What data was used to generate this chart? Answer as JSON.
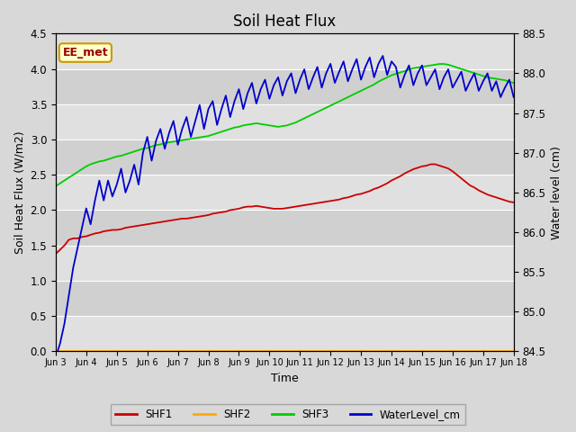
{
  "title": "Soil Heat Flux",
  "ylabel_left": "Soil Heat Flux (W/m2)",
  "ylabel_right": "Water level (cm)",
  "xlabel": "Time",
  "ylim_left": [
    0.0,
    4.5
  ],
  "ylim_right": [
    84.5,
    88.5
  ],
  "fig_bg_color": "#d8d8d8",
  "plot_bg_color": "#e8e8e8",
  "annotation_text": "EE_met",
  "annotation_bg": "#ffffcc",
  "annotation_border": "#cc9900",
  "annotation_text_color": "#990000",
  "x_tick_labels": [
    "Jun 3",
    "Jun 4",
    "Jun 5",
    "Jun 6",
    "Jun 7",
    "Jun 8",
    "Jun 9",
    "Jun 10",
    "Jun 11",
    "Jun 12",
    "Jun 13",
    "Jun 14",
    "Jun 15",
    "Jun 16",
    "Jun 17",
    "Jun 18"
  ],
  "shf1_color": "#cc0000",
  "shf2_color": "#ffaa00",
  "shf3_color": "#00cc00",
  "water_color": "#0000cc",
  "legend_labels": [
    "SHF1",
    "SHF2",
    "SHF3",
    "WaterLevel_cm"
  ],
  "band_colors": [
    "#e0e0e0",
    "#d0d0d0"
  ],
  "shf1": [
    1.38,
    1.44,
    1.5,
    1.58,
    1.6,
    1.6,
    1.62,
    1.63,
    1.65,
    1.67,
    1.68,
    1.7,
    1.71,
    1.72,
    1.72,
    1.73,
    1.75,
    1.76,
    1.77,
    1.78,
    1.79,
    1.8,
    1.81,
    1.82,
    1.83,
    1.84,
    1.85,
    1.86,
    1.87,
    1.88,
    1.88,
    1.89,
    1.9,
    1.91,
    1.92,
    1.93,
    1.95,
    1.96,
    1.97,
    1.98,
    2.0,
    2.01,
    2.02,
    2.04,
    2.05,
    2.05,
    2.06,
    2.05,
    2.04,
    2.03,
    2.02,
    2.02,
    2.02,
    2.03,
    2.04,
    2.05,
    2.06,
    2.07,
    2.08,
    2.09,
    2.1,
    2.11,
    2.12,
    2.13,
    2.14,
    2.15,
    2.17,
    2.18,
    2.2,
    2.22,
    2.23,
    2.25,
    2.27,
    2.3,
    2.32,
    2.35,
    2.38,
    2.42,
    2.45,
    2.48,
    2.52,
    2.55,
    2.58,
    2.6,
    2.62,
    2.63,
    2.65,
    2.65,
    2.63,
    2.61,
    2.59,
    2.55,
    2.5,
    2.45,
    2.4,
    2.35,
    2.32,
    2.28,
    2.25,
    2.22,
    2.2,
    2.18,
    2.16,
    2.14,
    2.12,
    2.11
  ],
  "shf2": [
    0.0,
    0.0,
    0.0,
    0.0,
    0.0,
    0.0,
    0.0,
    0.0,
    0.0,
    0.0,
    0.0,
    0.0,
    0.0,
    0.0,
    0.0,
    0.0,
    0.0,
    0.0,
    0.0,
    0.0,
    0.0,
    0.0,
    0.0,
    0.0,
    0.0,
    0.0,
    0.0,
    0.0,
    0.0,
    0.0,
    0.0,
    0.0,
    0.0,
    0.0,
    0.0,
    0.0,
    0.0,
    0.0,
    0.0,
    0.0,
    0.0,
    0.0,
    0.0,
    0.0,
    0.0,
    0.0,
    0.0,
    0.0,
    0.0,
    0.0,
    0.0,
    0.0,
    0.0,
    0.0,
    0.0,
    0.0,
    0.0,
    0.0,
    0.0,
    0.0,
    0.0,
    0.0,
    0.0,
    0.0,
    0.0,
    0.0,
    0.0,
    0.0,
    0.0,
    0.0,
    0.0,
    0.0,
    0.0,
    0.0,
    0.0,
    0.0,
    0.0,
    0.0,
    0.0,
    0.0,
    0.0,
    0.0,
    0.0,
    0.0,
    0.0,
    0.0,
    0.0,
    0.0,
    0.0,
    0.0,
    0.0,
    0.0,
    0.0,
    0.0,
    0.0,
    0.0,
    0.0,
    0.0,
    0.0,
    0.0,
    0.0,
    0.0,
    0.0,
    0.0,
    0.0,
    0.0
  ],
  "shf3": [
    2.34,
    2.38,
    2.42,
    2.46,
    2.5,
    2.54,
    2.58,
    2.62,
    2.65,
    2.67,
    2.69,
    2.7,
    2.72,
    2.74,
    2.76,
    2.77,
    2.79,
    2.81,
    2.83,
    2.85,
    2.87,
    2.88,
    2.9,
    2.92,
    2.93,
    2.95,
    2.96,
    2.97,
    2.98,
    2.99,
    3.0,
    3.01,
    3.02,
    3.03,
    3.04,
    3.05,
    3.07,
    3.09,
    3.11,
    3.13,
    3.15,
    3.17,
    3.18,
    3.2,
    3.21,
    3.22,
    3.23,
    3.22,
    3.21,
    3.2,
    3.19,
    3.18,
    3.19,
    3.2,
    3.22,
    3.24,
    3.27,
    3.3,
    3.33,
    3.36,
    3.39,
    3.42,
    3.45,
    3.48,
    3.51,
    3.54,
    3.57,
    3.6,
    3.63,
    3.66,
    3.69,
    3.72,
    3.75,
    3.78,
    3.82,
    3.85,
    3.88,
    3.91,
    3.93,
    3.95,
    3.97,
    3.99,
    4.01,
    4.02,
    4.03,
    4.04,
    4.05,
    4.06,
    4.07,
    4.07,
    4.06,
    4.04,
    4.02,
    4.0,
    3.98,
    3.96,
    3.94,
    3.92,
    3.9,
    3.88,
    3.87,
    3.86,
    3.85,
    3.84,
    3.82,
    3.8
  ],
  "water": [
    84.42,
    84.6,
    84.85,
    85.2,
    85.55,
    85.8,
    86.05,
    86.3,
    86.1,
    86.4,
    86.65,
    86.4,
    86.65,
    86.45,
    86.6,
    86.8,
    86.5,
    86.65,
    86.85,
    86.6,
    87.0,
    87.2,
    86.9,
    87.15,
    87.3,
    87.05,
    87.25,
    87.4,
    87.1,
    87.3,
    87.45,
    87.2,
    87.4,
    87.6,
    87.3,
    87.55,
    87.65,
    87.35,
    87.55,
    87.72,
    87.45,
    87.65,
    87.8,
    87.55,
    87.75,
    87.88,
    87.62,
    87.8,
    87.92,
    87.68,
    87.85,
    87.95,
    87.72,
    87.9,
    88.0,
    87.75,
    87.92,
    88.05,
    87.8,
    87.95,
    88.08,
    87.82,
    88.0,
    88.12,
    87.88,
    88.02,
    88.15,
    87.9,
    88.05,
    88.18,
    87.92,
    88.08,
    88.2,
    87.95,
    88.12,
    88.22,
    87.98,
    88.15,
    88.08,
    87.82,
    87.98,
    88.1,
    87.85,
    88.0,
    88.1,
    87.85,
    87.95,
    88.05,
    87.8,
    87.95,
    88.05,
    87.82,
    87.92,
    88.02,
    87.78,
    87.9,
    88.0,
    87.78,
    87.9,
    88.0,
    87.78,
    87.9,
    87.7,
    87.82,
    87.92,
    87.7
  ],
  "n_points": 106
}
